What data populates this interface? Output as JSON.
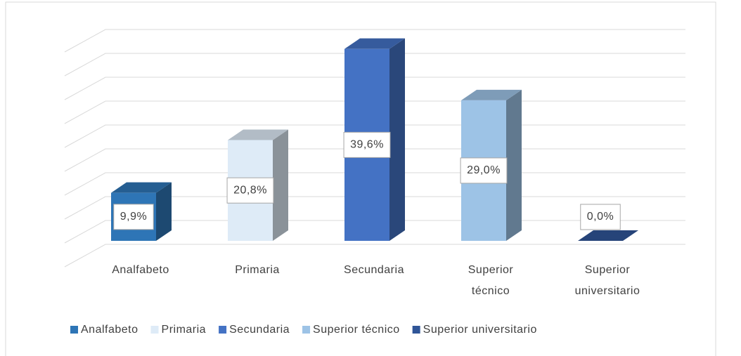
{
  "chart_data": {
    "type": "bar3d",
    "categories": [
      "Analfabeto",
      "Primaria",
      "Secundaria",
      "Superior técnico",
      "Superior universitario"
    ],
    "values": [
      9.9,
      20.8,
      39.6,
      29.0,
      0.0
    ],
    "value_labels": [
      "9,9%",
      "20,8%",
      "39,6%",
      "29,0%",
      "0,0%"
    ],
    "colors": [
      "#2e75b6",
      "#deebf7",
      "#4472c4",
      "#9dc3e6",
      "#2f5597"
    ],
    "ylim": [
      0,
      45
    ],
    "yticks": [
      0,
      5,
      10,
      15,
      20,
      25,
      30,
      35,
      40,
      45
    ],
    "grid": true,
    "legend": "bottom"
  }
}
